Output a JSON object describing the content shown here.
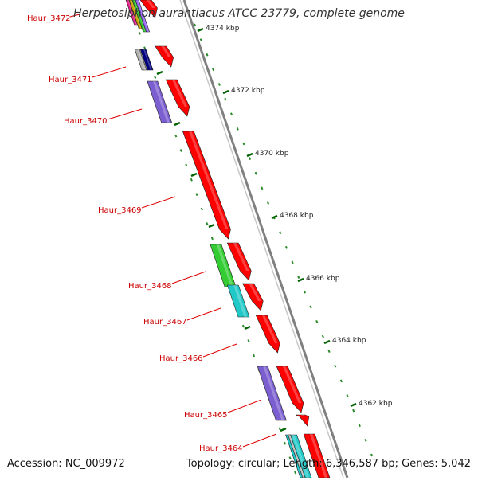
{
  "title": "Herpetosiphon aurantiacus ATCC 23779, complete genome",
  "footer": {
    "accession": "Accession: NC_009972",
    "summary": "Topology: circular; Length: 6,346,587 bp; Genes: 5,042"
  },
  "colors": {
    "backbone": "#808080",
    "forward_gene": "#ff0000",
    "tick_major": "#006400",
    "label_text": "#cc0000",
    "label_line": "#e00000"
  },
  "ruler_labels": [
    "4374 kbp",
    "4372 kbp",
    "4370 kbp",
    "4368 kbp",
    "4366 kbp",
    "4364 kbp",
    "4362 kbp"
  ],
  "gene_labels": [
    "Haur_3472",
    "Haur_3471",
    "Haur_3470",
    "Haur_3469",
    "Haur_3468",
    "Haur_3467",
    "Haur_3466",
    "Haur_3465",
    "Haur_3464"
  ]
}
